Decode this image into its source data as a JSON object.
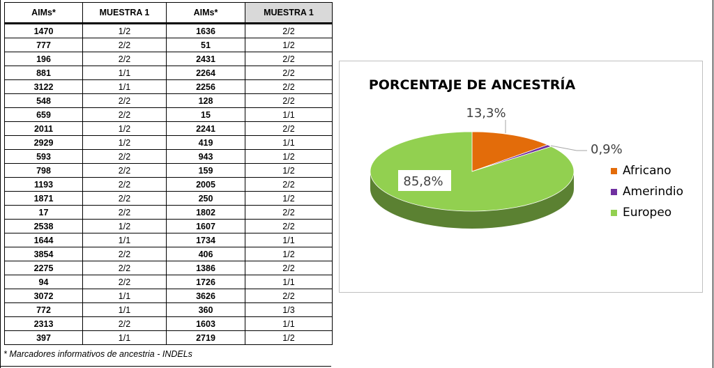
{
  "table": {
    "headers": [
      "AIMs*",
      "MUESTRA 1",
      "AIMs*",
      "MUESTRA 1"
    ],
    "rows": [
      [
        "1470",
        "1/2",
        "1636",
        "2/2"
      ],
      [
        "777",
        "2/2",
        "51",
        "1/2"
      ],
      [
        "196",
        "2/2",
        "2431",
        "2/2"
      ],
      [
        "881",
        "1/1",
        "2264",
        "2/2"
      ],
      [
        "3122",
        "1/1",
        "2256",
        "2/2"
      ],
      [
        "548",
        "2/2",
        "128",
        "2/2"
      ],
      [
        "659",
        "2/2",
        "15",
        "1/1"
      ],
      [
        "2011",
        "1/2",
        "2241",
        "2/2"
      ],
      [
        "2929",
        "1/2",
        "419",
        "1/1"
      ],
      [
        "593",
        "2/2",
        "943",
        "1/2"
      ],
      [
        "798",
        "2/2",
        "159",
        "1/2"
      ],
      [
        "1193",
        "2/2",
        "2005",
        "2/2"
      ],
      [
        "1871",
        "2/2",
        "250",
        "1/2"
      ],
      [
        "17",
        "2/2",
        "1802",
        "2/2"
      ],
      [
        "2538",
        "1/2",
        "1607",
        "2/2"
      ],
      [
        "1644",
        "1/1",
        "1734",
        "1/1"
      ],
      [
        "3854",
        "2/2",
        "406",
        "1/2"
      ],
      [
        "2275",
        "2/2",
        "1386",
        "2/2"
      ],
      [
        "94",
        "2/2",
        "1726",
        "1/1"
      ],
      [
        "3072",
        "1/1",
        "3626",
        "2/2"
      ],
      [
        "772",
        "1/1",
        "360",
        "1/3"
      ],
      [
        "2313",
        "2/2",
        "1603",
        "1/1"
      ],
      [
        "397",
        "1/1",
        "2719",
        "1/2"
      ]
    ],
    "footnote": "* Marcadores informativos de ancestria - INDELs"
  },
  "chart_data": {
    "type": "pie",
    "title": "PORCENTAJE DE ANCESTRÍA",
    "categories": [
      "Africano",
      "Amerindio",
      "Europeo"
    ],
    "values": [
      13.3,
      0.9,
      85.8
    ],
    "data_labels": [
      "13,3%",
      "0,9%",
      "85,8%"
    ],
    "colors": [
      "#e36c0a",
      "#7030a0",
      "#92d050"
    ],
    "legend_position": "right",
    "style": "3d"
  }
}
